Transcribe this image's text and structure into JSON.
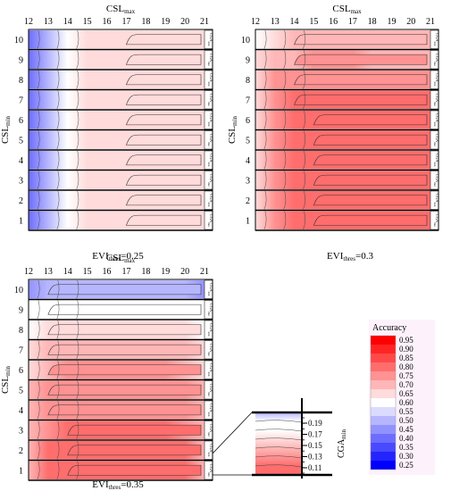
{
  "chart_data": {
    "type": "heatmap",
    "x_ticks": [
      "12",
      "13",
      "14",
      "15",
      "16",
      "17",
      "18",
      "19",
      "20",
      "21"
    ],
    "y_ticks": [
      "10",
      "9",
      "8",
      "7",
      "6",
      "5",
      "4",
      "3",
      "2",
      "1"
    ],
    "x_axis_title": "CSL",
    "x_axis_sub": "max",
    "y_axis_title": "CSL",
    "y_axis_sub": "min",
    "strip_label": "CGA",
    "strip_label_sub": "min",
    "panels": [
      {
        "label_main": "EVI",
        "label_sub": "thres",
        "label_suffix": "=0.25",
        "rows": [
          {
            "csl_min": 10,
            "profile": [
              0.4,
              0.52,
              0.6,
              0.63,
              0.64,
              0.65,
              0.66,
              0.66,
              0.66,
              0.66
            ]
          },
          {
            "csl_min": 9,
            "profile": [
              0.4,
              0.52,
              0.6,
              0.63,
              0.64,
              0.65,
              0.66,
              0.66,
              0.66,
              0.66
            ]
          },
          {
            "csl_min": 8,
            "profile": [
              0.4,
              0.52,
              0.6,
              0.63,
              0.64,
              0.65,
              0.66,
              0.66,
              0.66,
              0.66
            ]
          },
          {
            "csl_min": 7,
            "profile": [
              0.4,
              0.52,
              0.6,
              0.63,
              0.64,
              0.65,
              0.66,
              0.66,
              0.66,
              0.66
            ]
          },
          {
            "csl_min": 6,
            "profile": [
              0.4,
              0.52,
              0.6,
              0.63,
              0.64,
              0.65,
              0.66,
              0.66,
              0.66,
              0.66
            ]
          },
          {
            "csl_min": 5,
            "profile": [
              0.4,
              0.52,
              0.6,
              0.63,
              0.64,
              0.65,
              0.66,
              0.66,
              0.66,
              0.66
            ]
          },
          {
            "csl_min": 4,
            "profile": [
              0.4,
              0.52,
              0.6,
              0.63,
              0.64,
              0.65,
              0.66,
              0.66,
              0.66,
              0.66
            ]
          },
          {
            "csl_min": 3,
            "profile": [
              0.4,
              0.52,
              0.6,
              0.63,
              0.64,
              0.65,
              0.66,
              0.66,
              0.66,
              0.66
            ]
          },
          {
            "csl_min": 2,
            "profile": [
              0.4,
              0.52,
              0.6,
              0.63,
              0.64,
              0.65,
              0.66,
              0.66,
              0.66,
              0.66
            ]
          },
          {
            "csl_min": 1,
            "profile": [
              0.4,
              0.52,
              0.6,
              0.63,
              0.64,
              0.65,
              0.66,
              0.66,
              0.66,
              0.66
            ]
          }
        ]
      },
      {
        "label_main": "EVI",
        "label_sub": "thres",
        "label_suffix": "=0.3",
        "rows": [
          {
            "csl_min": 10,
            "profile": [
              0.62,
              0.66,
              0.68,
              0.69,
              0.69,
              0.69,
              0.69,
              0.69,
              0.68,
              0.68
            ]
          },
          {
            "csl_min": 9,
            "profile": [
              0.64,
              0.7,
              0.72,
              0.73,
              0.73,
              0.73,
              0.72,
              0.72,
              0.72,
              0.71
            ]
          },
          {
            "csl_min": 8,
            "profile": [
              0.66,
              0.74,
              0.76,
              0.77,
              0.77,
              0.77,
              0.77,
              0.76,
              0.76,
              0.75
            ]
          },
          {
            "csl_min": 7,
            "profile": [
              0.66,
              0.76,
              0.79,
              0.8,
              0.8,
              0.8,
              0.8,
              0.79,
              0.79,
              0.78
            ]
          },
          {
            "csl_min": 6,
            "profile": [
              0.66,
              0.76,
              0.79,
              0.8,
              0.81,
              0.81,
              0.8,
              0.8,
              0.79,
              0.78
            ]
          },
          {
            "csl_min": 5,
            "profile": [
              0.66,
              0.76,
              0.79,
              0.8,
              0.81,
              0.81,
              0.8,
              0.8,
              0.79,
              0.78
            ]
          },
          {
            "csl_min": 4,
            "profile": [
              0.66,
              0.76,
              0.79,
              0.8,
              0.81,
              0.81,
              0.8,
              0.8,
              0.79,
              0.78
            ]
          },
          {
            "csl_min": 3,
            "profile": [
              0.66,
              0.76,
              0.79,
              0.8,
              0.81,
              0.81,
              0.8,
              0.8,
              0.79,
              0.78
            ]
          },
          {
            "csl_min": 2,
            "profile": [
              0.66,
              0.76,
              0.79,
              0.8,
              0.81,
              0.81,
              0.8,
              0.8,
              0.79,
              0.78
            ]
          },
          {
            "csl_min": 1,
            "profile": [
              0.66,
              0.76,
              0.79,
              0.8,
              0.81,
              0.81,
              0.8,
              0.8,
              0.79,
              0.78
            ]
          }
        ]
      },
      {
        "label_main": "EVI",
        "label_sub": "thres",
        "label_suffix": "=0.35",
        "rows": [
          {
            "csl_min": 10,
            "profile": [
              0.47,
              0.49,
              0.5,
              0.5,
              0.5,
              0.5,
              0.5,
              0.5,
              0.49,
              0.46
            ]
          },
          {
            "csl_min": 9,
            "profile": [
              0.59,
              0.61,
              0.61,
              0.62,
              0.62,
              0.62,
              0.62,
              0.61,
              0.61,
              0.59
            ]
          },
          {
            "csl_min": 8,
            "profile": [
              0.62,
              0.65,
              0.66,
              0.66,
              0.66,
              0.66,
              0.66,
              0.66,
              0.65,
              0.62
            ]
          },
          {
            "csl_min": 7,
            "profile": [
              0.65,
              0.69,
              0.7,
              0.7,
              0.7,
              0.7,
              0.7,
              0.7,
              0.69,
              0.65
            ]
          },
          {
            "csl_min": 6,
            "profile": [
              0.67,
              0.72,
              0.73,
              0.73,
              0.73,
              0.73,
              0.73,
              0.73,
              0.72,
              0.67
            ]
          },
          {
            "csl_min": 5,
            "profile": [
              0.68,
              0.74,
              0.75,
              0.75,
              0.75,
              0.75,
              0.75,
              0.75,
              0.74,
              0.68
            ]
          },
          {
            "csl_min": 4,
            "profile": [
              0.69,
              0.76,
              0.77,
              0.77,
              0.77,
              0.77,
              0.77,
              0.77,
              0.76,
              0.69
            ]
          },
          {
            "csl_min": 3,
            "profile": [
              0.7,
              0.77,
              0.78,
              0.79,
              0.79,
              0.79,
              0.79,
              0.78,
              0.77,
              0.7
            ]
          },
          {
            "csl_min": 2,
            "profile": [
              0.71,
              0.78,
              0.8,
              0.8,
              0.8,
              0.8,
              0.8,
              0.8,
              0.78,
              0.71
            ]
          },
          {
            "csl_min": 1,
            "profile": [
              0.71,
              0.78,
              0.8,
              0.81,
              0.81,
              0.81,
              0.81,
              0.8,
              0.78,
              0.71
            ]
          }
        ]
      }
    ],
    "inset": {
      "ticks": [
        "0.19",
        "0.17",
        "0.15",
        "0.13",
        "0.11"
      ],
      "title_main": "CGA",
      "title_sub": "min"
    },
    "colorbar": {
      "title": "Accuracy",
      "ticks": [
        "0.95",
        "0.90",
        "0.85",
        "0.80",
        "0.75",
        "0.70",
        "0.65",
        "0.60",
        "0.55",
        "0.50",
        "0.45",
        "0.40",
        "0.35",
        "0.30",
        "0.25"
      ],
      "low_color": "#0000ff",
      "mid_color": "#ffffff",
      "high_color": "#ff0000"
    }
  }
}
